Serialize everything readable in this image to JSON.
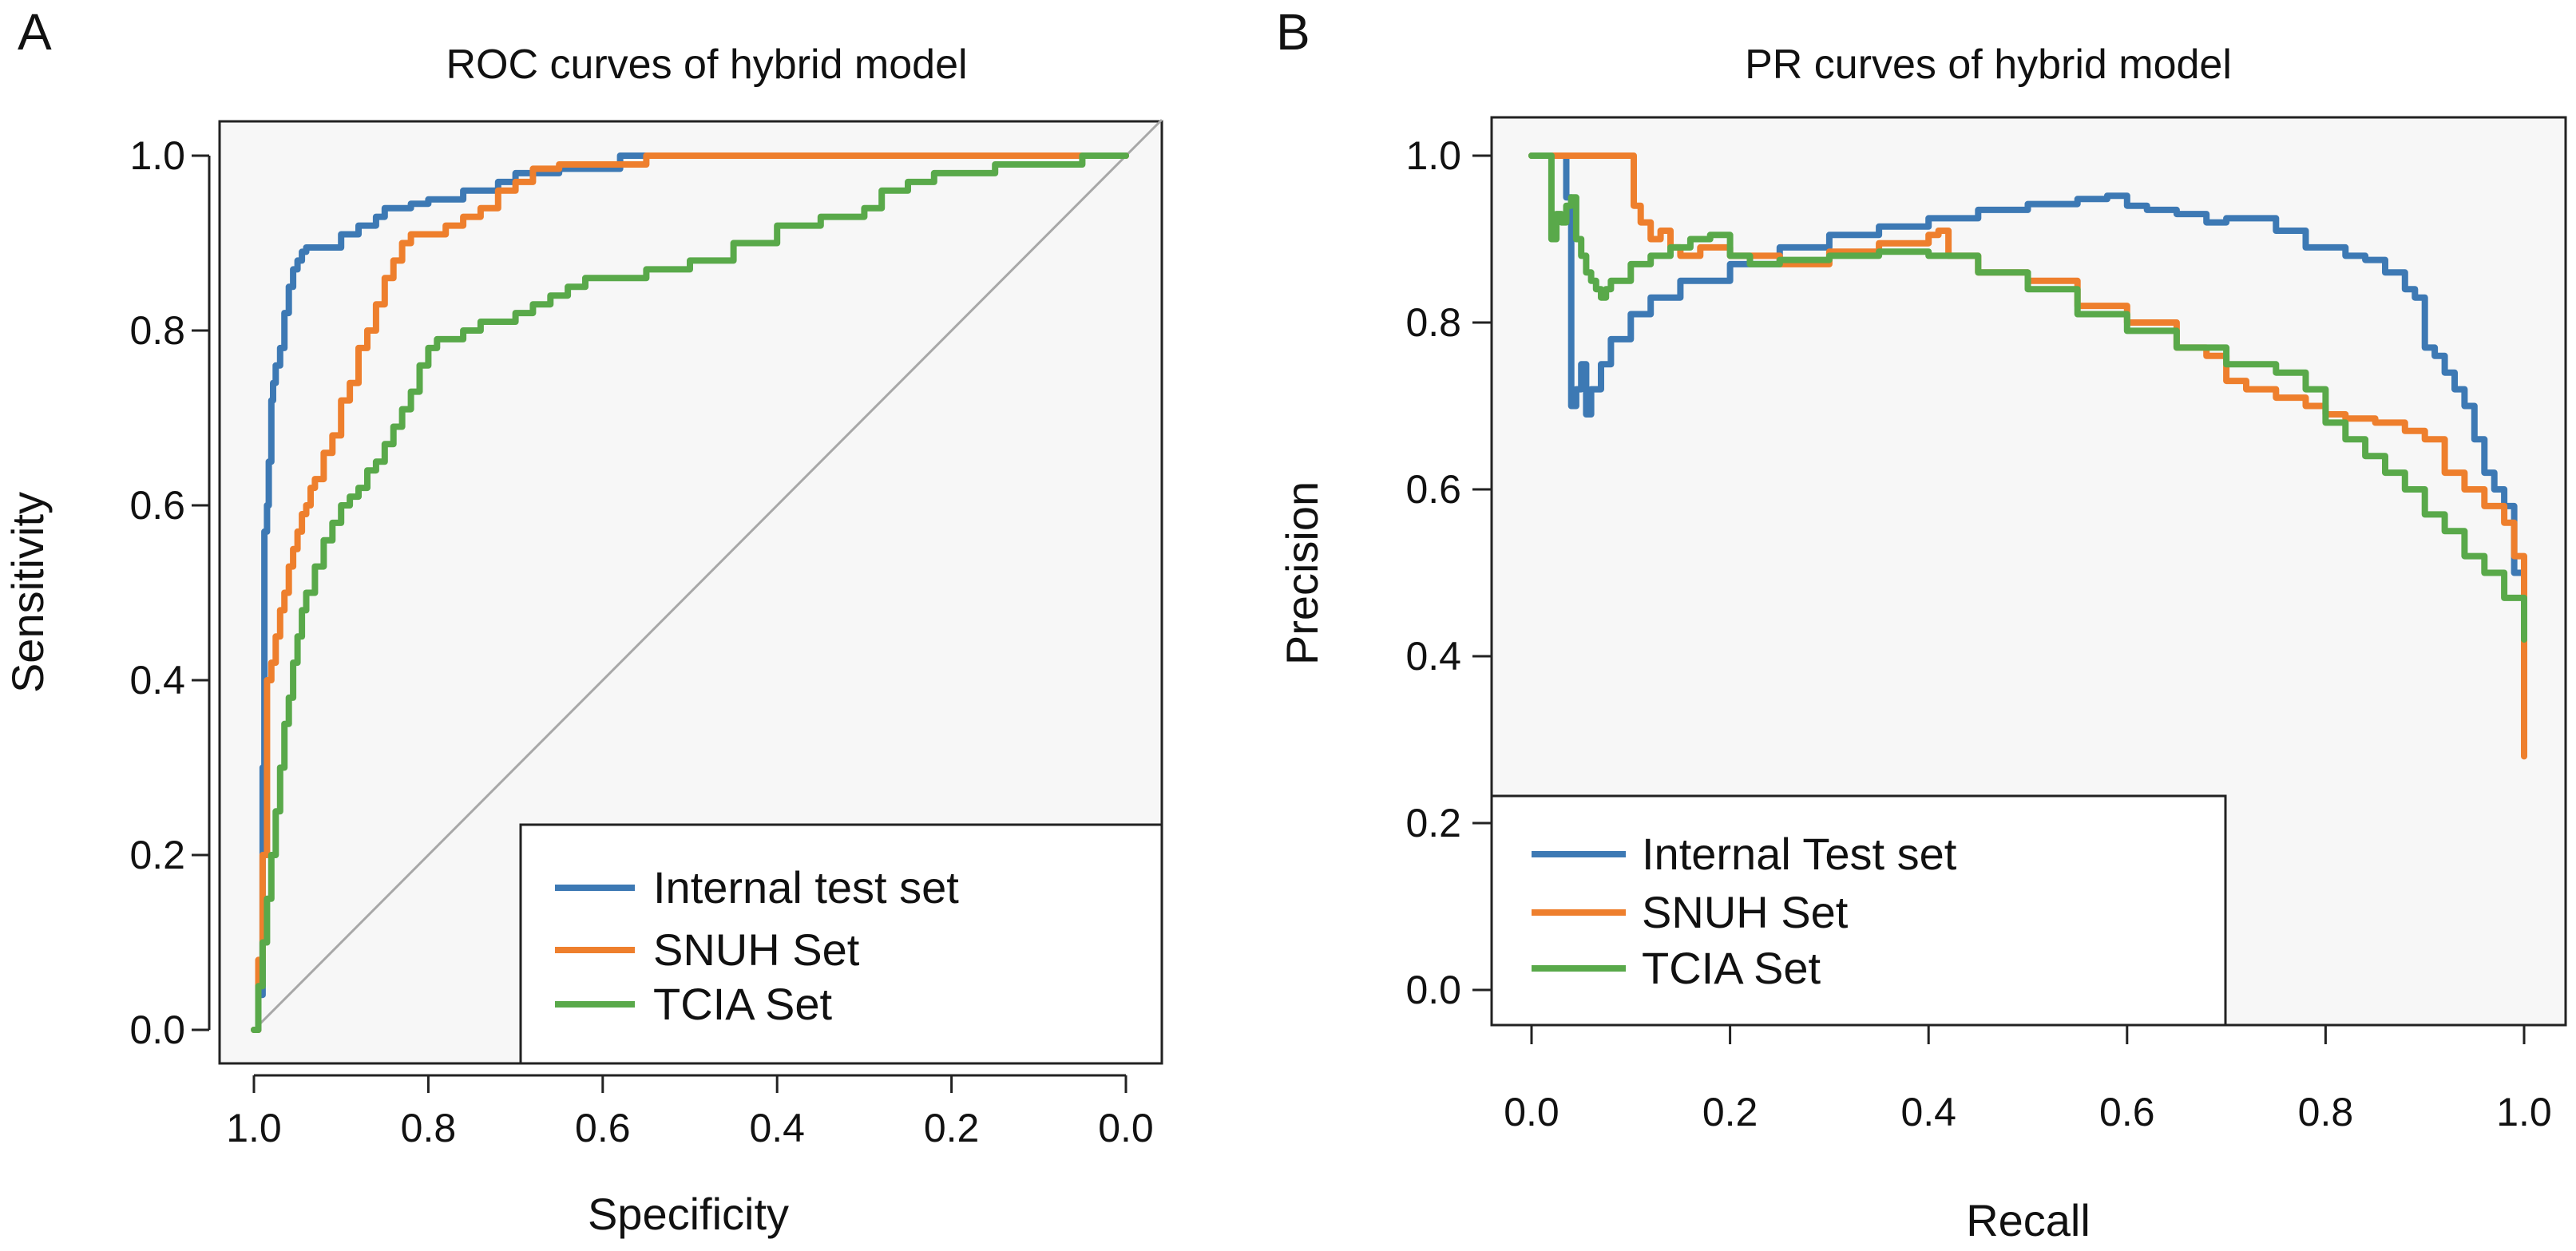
{
  "panels": [
    {
      "panel_label": "A",
      "legend_position": "bottom-right"
    },
    {
      "panel_label": "B",
      "legend_position": "bottom-left"
    }
  ],
  "colors": {
    "blue": "#3d79b4",
    "orange": "#ee7f2d",
    "green": "#59a94a",
    "diagonal": "#a8a8a8",
    "panel_bg": "#f7f7f7",
    "axis": "#222222"
  },
  "chart_data": [
    {
      "type": "line",
      "title": "ROC curves of hybrid model",
      "xlabel": "Specificity",
      "ylabel": "Sensitivity",
      "xlim": [
        1.0,
        0.0
      ],
      "ylim": [
        0.0,
        1.0
      ],
      "x_reversed": true,
      "x_ticks": [
        "1.0",
        "0.8",
        "0.6",
        "0.4",
        "0.2",
        "0.0"
      ],
      "y_ticks": [
        "0.0",
        "0.2",
        "0.4",
        "0.6",
        "0.8",
        "1.0"
      ],
      "reference_line": "diagonal",
      "grid": false,
      "series": [
        {
          "name": "Internal test set",
          "color": "#3d79b4",
          "x": [
            1.0,
            0.995,
            0.99,
            0.988,
            0.985,
            0.983,
            0.98,
            0.978,
            0.975,
            0.97,
            0.965,
            0.96,
            0.955,
            0.95,
            0.945,
            0.94,
            0.935,
            0.93,
            0.92,
            0.9,
            0.88,
            0.86,
            0.85,
            0.82,
            0.8,
            0.76,
            0.72,
            0.7,
            0.65,
            0.6,
            0.58,
            0.5,
            0.4,
            0.3,
            0.2,
            0.1,
            0.0
          ],
          "y": [
            0.0,
            0.04,
            0.3,
            0.57,
            0.6,
            0.65,
            0.72,
            0.74,
            0.76,
            0.78,
            0.82,
            0.85,
            0.87,
            0.88,
            0.89,
            0.895,
            0.895,
            0.895,
            0.895,
            0.91,
            0.92,
            0.93,
            0.94,
            0.945,
            0.95,
            0.96,
            0.97,
            0.98,
            0.985,
            0.985,
            1.0,
            1.0,
            1.0,
            1.0,
            1.0,
            1.0,
            1.0
          ]
        },
        {
          "name": "SNUH Set",
          "color": "#ee7f2d",
          "x": [
            1.0,
            0.995,
            0.99,
            0.985,
            0.98,
            0.975,
            0.97,
            0.965,
            0.96,
            0.955,
            0.95,
            0.945,
            0.94,
            0.935,
            0.93,
            0.92,
            0.91,
            0.9,
            0.89,
            0.88,
            0.87,
            0.86,
            0.85,
            0.84,
            0.83,
            0.82,
            0.8,
            0.78,
            0.76,
            0.74,
            0.72,
            0.7,
            0.68,
            0.65,
            0.6,
            0.55,
            0.5,
            0.4,
            0.3,
            0.2,
            0.1,
            0.0
          ],
          "y": [
            0.0,
            0.08,
            0.2,
            0.4,
            0.42,
            0.45,
            0.48,
            0.5,
            0.53,
            0.55,
            0.57,
            0.59,
            0.6,
            0.62,
            0.63,
            0.66,
            0.68,
            0.72,
            0.74,
            0.78,
            0.8,
            0.83,
            0.86,
            0.88,
            0.9,
            0.91,
            0.91,
            0.92,
            0.93,
            0.94,
            0.96,
            0.97,
            0.985,
            0.99,
            0.99,
            1.0,
            1.0,
            1.0,
            1.0,
            1.0,
            1.0,
            1.0
          ]
        },
        {
          "name": "TCIA Set",
          "color": "#59a94a",
          "x": [
            1.0,
            0.995,
            0.99,
            0.985,
            0.98,
            0.975,
            0.97,
            0.965,
            0.96,
            0.955,
            0.95,
            0.945,
            0.94,
            0.93,
            0.92,
            0.91,
            0.9,
            0.89,
            0.88,
            0.87,
            0.86,
            0.85,
            0.84,
            0.83,
            0.82,
            0.81,
            0.8,
            0.79,
            0.78,
            0.76,
            0.74,
            0.72,
            0.7,
            0.68,
            0.66,
            0.64,
            0.62,
            0.6,
            0.57,
            0.55,
            0.5,
            0.45,
            0.4,
            0.35,
            0.3,
            0.28,
            0.25,
            0.22,
            0.2,
            0.15,
            0.1,
            0.05,
            0.0
          ],
          "y": [
            0.0,
            0.05,
            0.1,
            0.15,
            0.2,
            0.25,
            0.3,
            0.35,
            0.38,
            0.42,
            0.45,
            0.48,
            0.5,
            0.53,
            0.56,
            0.58,
            0.6,
            0.61,
            0.62,
            0.64,
            0.65,
            0.67,
            0.69,
            0.71,
            0.73,
            0.76,
            0.78,
            0.79,
            0.79,
            0.8,
            0.81,
            0.81,
            0.82,
            0.83,
            0.84,
            0.85,
            0.86,
            0.86,
            0.86,
            0.87,
            0.88,
            0.9,
            0.92,
            0.93,
            0.94,
            0.96,
            0.97,
            0.98,
            0.98,
            0.99,
            0.99,
            1.0,
            1.0
          ]
        }
      ]
    },
    {
      "type": "line",
      "title": "PR curves of hybrid model",
      "xlabel": "Recall",
      "ylabel": "Precision",
      "xlim": [
        0.0,
        1.0
      ],
      "ylim": [
        0.0,
        1.0
      ],
      "x_ticks": [
        "0.0",
        "0.2",
        "0.4",
        "0.6",
        "0.8",
        "1.0"
      ],
      "y_ticks": [
        "0.0",
        "0.2",
        "0.4",
        "0.6",
        "0.8",
        "1.0"
      ],
      "grid": false,
      "series": [
        {
          "name": "Internal Test set",
          "color": "#3d79b4",
          "x": [
            0.0,
            0.03,
            0.035,
            0.04,
            0.045,
            0.05,
            0.055,
            0.06,
            0.07,
            0.08,
            0.1,
            0.12,
            0.15,
            0.2,
            0.25,
            0.3,
            0.35,
            0.4,
            0.45,
            0.5,
            0.55,
            0.58,
            0.6,
            0.62,
            0.65,
            0.68,
            0.7,
            0.72,
            0.75,
            0.78,
            0.8,
            0.82,
            0.84,
            0.86,
            0.88,
            0.89,
            0.9,
            0.91,
            0.92,
            0.93,
            0.94,
            0.95,
            0.96,
            0.97,
            0.98,
            0.99,
            1.0
          ],
          "y": [
            1.0,
            1.0,
            0.95,
            0.7,
            0.72,
            0.75,
            0.69,
            0.72,
            0.75,
            0.78,
            0.81,
            0.83,
            0.85,
            0.87,
            0.89,
            0.905,
            0.915,
            0.925,
            0.935,
            0.942,
            0.948,
            0.952,
            0.94,
            0.935,
            0.93,
            0.92,
            0.925,
            0.925,
            0.91,
            0.89,
            0.89,
            0.88,
            0.875,
            0.86,
            0.84,
            0.83,
            0.77,
            0.76,
            0.74,
            0.72,
            0.7,
            0.66,
            0.62,
            0.6,
            0.58,
            0.5,
            0.48
          ]
        },
        {
          "name": "SNUH Set",
          "color": "#ee7f2d",
          "x": [
            0.0,
            0.03,
            0.06,
            0.08,
            0.1,
            0.103,
            0.11,
            0.12,
            0.13,
            0.14,
            0.15,
            0.17,
            0.2,
            0.25,
            0.3,
            0.35,
            0.4,
            0.41,
            0.42,
            0.45,
            0.5,
            0.55,
            0.6,
            0.65,
            0.68,
            0.7,
            0.72,
            0.75,
            0.78,
            0.8,
            0.82,
            0.85,
            0.88,
            0.9,
            0.92,
            0.94,
            0.96,
            0.98,
            0.99,
            1.0
          ],
          "y": [
            1.0,
            1.0,
            1.0,
            1.0,
            1.0,
            0.94,
            0.92,
            0.9,
            0.91,
            0.89,
            0.88,
            0.89,
            0.88,
            0.87,
            0.885,
            0.895,
            0.905,
            0.91,
            0.88,
            0.86,
            0.85,
            0.82,
            0.8,
            0.77,
            0.76,
            0.73,
            0.72,
            0.71,
            0.7,
            0.69,
            0.685,
            0.68,
            0.67,
            0.66,
            0.62,
            0.6,
            0.58,
            0.56,
            0.52,
            0.28
          ]
        },
        {
          "name": "TCIA Set",
          "color": "#59a94a",
          "x": [
            0.0,
            0.015,
            0.02,
            0.025,
            0.03,
            0.035,
            0.04,
            0.045,
            0.05,
            0.055,
            0.06,
            0.065,
            0.07,
            0.075,
            0.08,
            0.1,
            0.12,
            0.14,
            0.16,
            0.18,
            0.2,
            0.22,
            0.25,
            0.3,
            0.35,
            0.4,
            0.45,
            0.5,
            0.55,
            0.6,
            0.65,
            0.7,
            0.75,
            0.78,
            0.8,
            0.82,
            0.84,
            0.86,
            0.88,
            0.9,
            0.92,
            0.94,
            0.96,
            0.98,
            1.0
          ],
          "y": [
            1.0,
            1.0,
            0.9,
            0.93,
            0.92,
            0.94,
            0.95,
            0.9,
            0.88,
            0.86,
            0.85,
            0.84,
            0.83,
            0.84,
            0.85,
            0.87,
            0.88,
            0.89,
            0.9,
            0.905,
            0.88,
            0.87,
            0.875,
            0.88,
            0.885,
            0.88,
            0.86,
            0.84,
            0.81,
            0.79,
            0.77,
            0.75,
            0.74,
            0.72,
            0.68,
            0.66,
            0.64,
            0.62,
            0.6,
            0.57,
            0.55,
            0.52,
            0.5,
            0.47,
            0.42
          ]
        }
      ]
    }
  ]
}
